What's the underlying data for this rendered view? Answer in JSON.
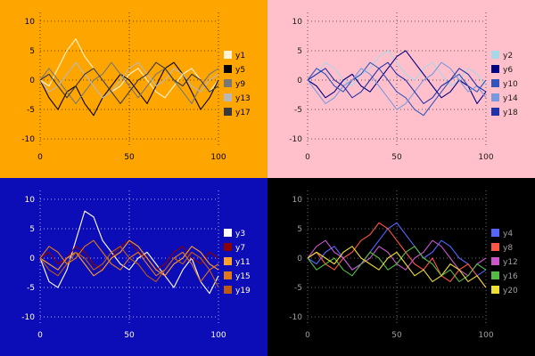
{
  "chart_data": [
    {
      "type": "line",
      "id": "top-left",
      "background": "#FFA500",
      "foreground": "#000000",
      "x_range": [
        0,
        100
      ],
      "y_range": [
        -11.5,
        11.5
      ],
      "x_ticks": [
        0,
        50,
        100
      ],
      "y_ticks": [
        -10,
        -5,
        0,
        5,
        10
      ],
      "x_step": 5,
      "grid": true,
      "legend_position": "right",
      "series": [
        {
          "name": "y1",
          "color": "#FFF5D6",
          "values": [
            0,
            -1,
            2,
            5,
            7,
            4,
            2,
            0,
            -2,
            -1,
            1,
            2,
            0,
            -2,
            -3,
            -1,
            1,
            2,
            0,
            -2,
            0
          ]
        },
        {
          "name": "y5",
          "color": "#000000",
          "values": [
            0,
            -3,
            -5,
            -2,
            -1,
            -4,
            -6,
            -3,
            -1,
            1,
            0,
            -2,
            -4,
            -1,
            2,
            3,
            1,
            -2,
            -5,
            -3,
            0
          ]
        },
        {
          "name": "y9",
          "color": "#787878",
          "values": [
            0,
            2,
            0,
            -2,
            -4,
            -2,
            0,
            1,
            3,
            1,
            -1,
            -3,
            -1,
            1,
            2,
            0,
            -2,
            -4,
            -1,
            1,
            2
          ]
        },
        {
          "name": "y13",
          "color": "#B8B8B8",
          "values": [
            0,
            -2,
            -1,
            1,
            3,
            1,
            -1,
            -3,
            -2,
            0,
            2,
            3,
            1,
            -1,
            0,
            2,
            1,
            -1,
            -2,
            0,
            1
          ]
        },
        {
          "name": "y17",
          "color": "#38383F",
          "values": [
            0,
            1,
            -1,
            -3,
            -1,
            1,
            2,
            0,
            -2,
            -4,
            -2,
            0,
            1,
            3,
            2,
            0,
            -1,
            1,
            0,
            -2,
            -1
          ]
        }
      ]
    },
    {
      "type": "line",
      "id": "top-right",
      "background": "#FFC0CB",
      "foreground": "#1A1A1A",
      "x_range": [
        0,
        100
      ],
      "y_range": [
        -11.5,
        11.5
      ],
      "x_ticks": [
        0,
        50,
        100
      ],
      "y_ticks": [
        -10,
        -5,
        0,
        5,
        10
      ],
      "x_step": 5,
      "grid": true,
      "legend_position": "right",
      "series": [
        {
          "name": "y2",
          "color": "#A8D8E8",
          "values": [
            0,
            1,
            3,
            2,
            0,
            -1,
            1,
            2,
            4,
            5,
            3,
            1,
            0,
            2,
            3,
            1,
            -1,
            0,
            2,
            1,
            -1
          ]
        },
        {
          "name": "y6",
          "color": "#000080",
          "values": [
            0,
            -1,
            -3,
            -2,
            0,
            1,
            -1,
            -2,
            0,
            2,
            4,
            5,
            3,
            1,
            -1,
            -3,
            -2,
            0,
            -1,
            -4,
            -2
          ]
        },
        {
          "name": "y10",
          "color": "#3355BB",
          "values": [
            0,
            2,
            1,
            -1,
            -2,
            0,
            1,
            3,
            2,
            0,
            -2,
            -3,
            -5,
            -6,
            -4,
            -2,
            0,
            1,
            -1,
            -2,
            0
          ]
        },
        {
          "name": "y14",
          "color": "#7799DD",
          "values": [
            0,
            -2,
            -4,
            -3,
            -1,
            0,
            2,
            1,
            -1,
            -3,
            -5,
            -4,
            -2,
            0,
            1,
            3,
            2,
            0,
            -2,
            -1,
            -3
          ]
        },
        {
          "name": "y18",
          "color": "#2233AA",
          "values": [
            0,
            1,
            2,
            0,
            -1,
            -3,
            -2,
            0,
            2,
            3,
            1,
            0,
            -2,
            -4,
            -3,
            -1,
            0,
            2,
            1,
            -1,
            -2
          ]
        }
      ]
    },
    {
      "type": "line",
      "id": "bottom-left",
      "background": "#0D0DB8",
      "foreground": "#FFFFFF",
      "x_range": [
        0,
        100
      ],
      "y_range": [
        -11.5,
        11.5
      ],
      "x_ticks": [
        0,
        50,
        100
      ],
      "y_ticks": [
        -10,
        -5,
        0,
        5,
        10
      ],
      "x_step": 5,
      "grid": true,
      "legend_position": "right",
      "series": [
        {
          "name": "y3",
          "color": "#FFFFFF",
          "values": [
            0,
            -4,
            -5,
            -2,
            3,
            8,
            7,
            3,
            1,
            -1,
            -2,
            0,
            1,
            -1,
            -3,
            -5,
            -2,
            0,
            -4,
            -6,
            -3
          ]
        },
        {
          "name": "y7",
          "color": "#8B0000",
          "values": [
            0,
            1,
            -1,
            0,
            2,
            1,
            -1,
            -2,
            0,
            2,
            3,
            1,
            0,
            -2,
            -1,
            1,
            2,
            0,
            -1,
            1,
            0
          ]
        },
        {
          "name": "y11",
          "color": "#FFA028",
          "values": [
            0,
            -1,
            -2,
            0,
            1,
            -1,
            -3,
            -2,
            0,
            1,
            3,
            2,
            0,
            -2,
            -3,
            -1,
            0,
            2,
            1,
            -1,
            -2
          ]
        },
        {
          "name": "y15",
          "color": "#E07818",
          "values": [
            0,
            2,
            1,
            -1,
            0,
            2,
            3,
            1,
            -1,
            -2,
            0,
            1,
            -1,
            -3,
            -2,
            0,
            1,
            -1,
            -4,
            -2,
            -1
          ]
        },
        {
          "name": "y19",
          "color": "#C05A10",
          "values": [
            0,
            -2,
            -3,
            -1,
            1,
            0,
            -2,
            -1,
            1,
            2,
            0,
            -1,
            -3,
            -4,
            -2,
            0,
            -1,
            1,
            0,
            -2,
            -5
          ]
        }
      ]
    },
    {
      "type": "line",
      "id": "bottom-right",
      "background": "#000000",
      "foreground": "#A0A0A0",
      "x_range": [
        0,
        100
      ],
      "y_range": [
        -11.5,
        11.5
      ],
      "x_ticks": [
        0,
        50,
        100
      ],
      "y_ticks": [
        -10,
        -5,
        0,
        5,
        10
      ],
      "x_step": 5,
      "grid": true,
      "legend_position": "right",
      "series": [
        {
          "name": "y4",
          "color": "#5566FF",
          "values": [
            0,
            -1,
            1,
            2,
            0,
            -2,
            -1,
            1,
            3,
            5,
            6,
            4,
            2,
            0,
            1,
            3,
            2,
            0,
            -1,
            -3,
            -2
          ]
        },
        {
          "name": "y8",
          "color": "#FF5544",
          "values": [
            0,
            1,
            -1,
            -2,
            0,
            1,
            3,
            4,
            6,
            5,
            3,
            1,
            -1,
            -2,
            0,
            -3,
            -4,
            -2,
            -1,
            -3,
            -5
          ]
        },
        {
          "name": "y12",
          "color": "#CC55CC",
          "values": [
            0,
            2,
            3,
            1,
            0,
            -2,
            -1,
            0,
            2,
            1,
            -1,
            -2,
            0,
            1,
            3,
            2,
            0,
            -2,
            -3,
            -1,
            0
          ]
        },
        {
          "name": "y16",
          "color": "#55BB44",
          "values": [
            0,
            -2,
            -1,
            0,
            -2,
            -3,
            -1,
            1,
            0,
            -2,
            -1,
            1,
            2,
            0,
            -1,
            -3,
            -2,
            -4,
            -3,
            -1,
            -2
          ]
        },
        {
          "name": "y20",
          "color": "#EEDD33",
          "values": [
            0,
            1,
            0,
            -1,
            1,
            2,
            0,
            -1,
            -2,
            0,
            1,
            -1,
            -3,
            -2,
            -4,
            -3,
            -1,
            -2,
            -4,
            -3,
            -5
          ]
        }
      ]
    }
  ]
}
